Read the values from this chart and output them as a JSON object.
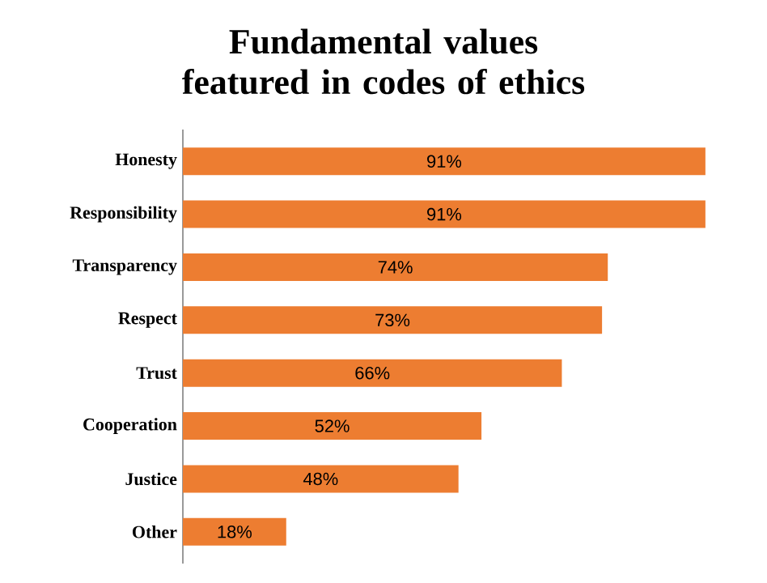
{
  "chart_data": {
    "type": "bar",
    "orientation": "horizontal",
    "title": "Fundamental values featured in codes of ethics",
    "categories": [
      "Honesty",
      "Responsibility",
      "Transparency",
      "Respect",
      "Trust",
      "Cooperation",
      "Justice",
      "Other"
    ],
    "values": [
      91,
      91,
      74,
      73,
      66,
      52,
      48,
      18
    ],
    "value_labels": [
      "91%",
      "91%",
      "74%",
      "73%",
      "66%",
      "52%",
      "48%",
      "18%"
    ],
    "color": "#ed7d31",
    "tick_labels": "y"
  }
}
